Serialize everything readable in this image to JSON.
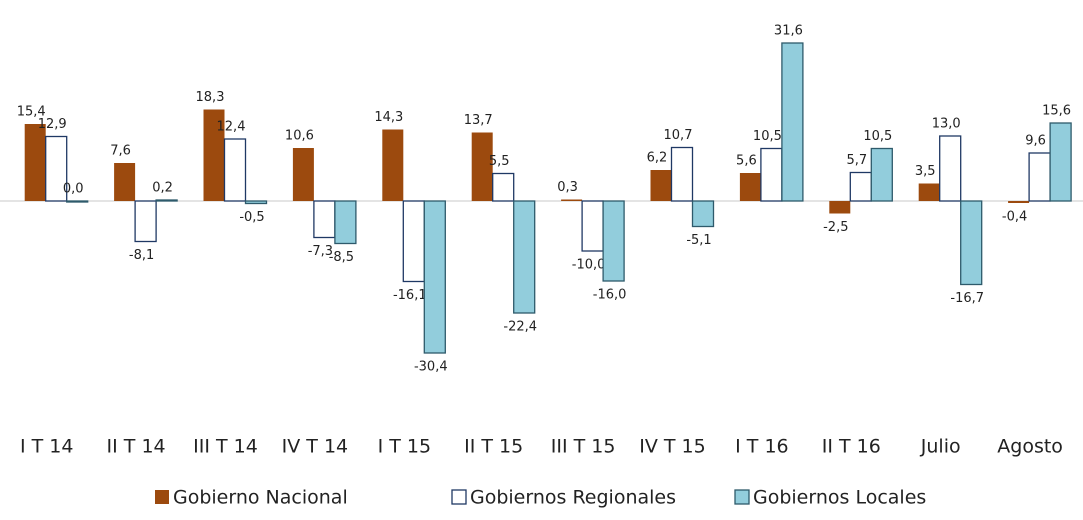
{
  "chart_data": {
    "type": "bar",
    "categories": [
      "I T 14",
      "II T 14",
      "III T 14",
      "IV T 14",
      "I T 15",
      "II T 15",
      "III T 15",
      "IV T 15",
      "I T 16",
      "II T 16",
      "Julio",
      "Agosto"
    ],
    "series": [
      {
        "name": "Gobierno Nacional",
        "color": "#9c4a0e",
        "values": [
          15.4,
          7.6,
          18.3,
          10.6,
          14.3,
          13.7,
          0.3,
          6.2,
          5.6,
          -2.5,
          3.5,
          -0.4
        ],
        "value_labels": [
          "15,4",
          "7,6",
          "18,3",
          "10,6",
          "14,3",
          "13,7",
          "0,3",
          "6,2",
          "5,6",
          "-2,5",
          "3,5",
          "-0,4"
        ]
      },
      {
        "name": "Gobiernos Regionales",
        "color": "#ffffff",
        "values": [
          12.9,
          -8.1,
          12.4,
          -7.3,
          -16.1,
          5.5,
          -10.0,
          10.7,
          10.5,
          5.7,
          13.0,
          9.6
        ],
        "value_labels": [
          "12,9",
          "-8,1",
          "12,4",
          "-7,3",
          "-16,1",
          "5,5",
          "-10,0",
          "10,7",
          "10,5",
          "5,7",
          "13,0",
          "9,6"
        ]
      },
      {
        "name": "Gobiernos Locales",
        "color": "#92cddc",
        "values": [
          0.0,
          0.2,
          -0.5,
          -8.5,
          -30.4,
          -22.4,
          -16.0,
          -5.1,
          31.6,
          10.5,
          -16.7,
          15.6
        ],
        "value_labels": [
          "0,0",
          "0,2",
          "-0,5",
          "-8,5",
          "-30,4",
          "-22,4",
          "-16,0",
          "-5,1",
          "31,6",
          "10,5",
          "-16,7",
          "15,6"
        ]
      }
    ],
    "legend": "bottom"
  }
}
